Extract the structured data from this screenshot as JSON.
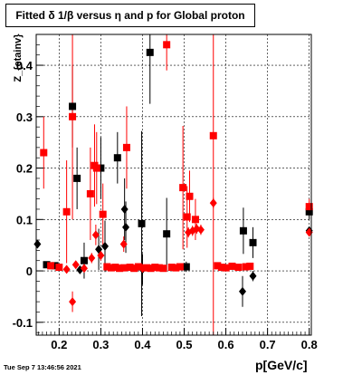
{
  "header": {
    "title": "Fitted δ 1/β versus η and p for Global proton"
  },
  "footer": {
    "timestamp": "Tue Sep  7 13:46:56 2021"
  },
  "chart_data": {
    "type": "scatter",
    "title": "Fitted δ 1/β versus η and p for Global proton",
    "xlabel": "p[GeV/c]",
    "ylabel": "Z_{etainv}",
    "xlim": [
      0.145,
      0.805
    ],
    "ylim": [
      -0.125,
      0.46
    ],
    "xticks": [
      0.2,
      0.3,
      0.4,
      0.5,
      0.6,
      0.7,
      0.8
    ],
    "yticks": [
      -0.1,
      0,
      0.1,
      0.2,
      0.3,
      0.4
    ],
    "grid": true,
    "series": [
      {
        "marker": "square",
        "color": "#000000",
        "points": [
          {
            "x": 0.17,
            "y": 0.012,
            "e": 0.004
          },
          {
            "x": 0.19,
            "y": 0.01,
            "e": 0.005
          },
          {
            "x": 0.232,
            "y": 0.32,
            "e": 0.08
          },
          {
            "x": 0.243,
            "y": 0.18,
            "e": 0.06
          },
          {
            "x": 0.26,
            "y": 0.02,
            "e": 0.035
          },
          {
            "x": 0.3,
            "y": 0.2,
            "e": 0.06
          },
          {
            "x": 0.34,
            "y": 0.22,
            "e": 0.05
          },
          {
            "x": 0.398,
            "y": 0.092,
            "e": 0.18
          },
          {
            "x": 0.418,
            "y": 0.425,
            "e": 0.1
          },
          {
            "x": 0.458,
            "y": 0.072,
            "e": 0.07
          },
          {
            "x": 0.505,
            "y": 0.008,
            "e": 0.01
          },
          {
            "x": 0.642,
            "y": 0.078,
            "e": 0.045
          },
          {
            "x": 0.665,
            "y": 0.055,
            "e": 0.03
          },
          {
            "x": 0.8,
            "y": 0.115,
            "e": 0.015
          }
        ]
      },
      {
        "marker": "diamond",
        "color": "#000000",
        "points": [
          {
            "x": 0.148,
            "y": 0.052,
            "e": 0.005
          },
          {
            "x": 0.25,
            "y": 0.002,
            "e": 0.005
          },
          {
            "x": 0.295,
            "y": 0.042,
            "e": 0.04
          },
          {
            "x": 0.31,
            "y": 0.048,
            "e": 0.05
          },
          {
            "x": 0.357,
            "y": 0.12,
            "e": 0.06
          },
          {
            "x": 0.36,
            "y": 0.085,
            "e": 0.05
          },
          {
            "x": 0.4,
            "y": 0.003,
            "e": 0.03
          },
          {
            "x": 0.64,
            "y": -0.04,
            "e": 0.03
          },
          {
            "x": 0.665,
            "y": -0.01,
            "e": 0.01
          },
          {
            "x": 0.8,
            "y": 0.078,
            "e": 0.008
          }
        ]
      },
      {
        "marker": "square",
        "color": "#ff0000",
        "points": [
          {
            "x": 0.163,
            "y": 0.23,
            "e": 0.07
          },
          {
            "x": 0.18,
            "y": 0.01,
            "e": 0.005
          },
          {
            "x": 0.2,
            "y": 0.007,
            "e": 0.005
          },
          {
            "x": 0.218,
            "y": 0.115,
            "e": 0.1
          },
          {
            "x": 0.232,
            "y": 0.3,
            "e": 0.2
          },
          {
            "x": 0.275,
            "y": 0.15,
            "e": 0.09
          },
          {
            "x": 0.285,
            "y": 0.205,
            "e": 0.08
          },
          {
            "x": 0.29,
            "y": 0.2,
            "e": 0.07
          },
          {
            "x": 0.305,
            "y": 0.11,
            "e": 0.06
          },
          {
            "x": 0.315,
            "y": 0.008,
            "e": 0.005
          },
          {
            "x": 0.325,
            "y": 0.006,
            "e": 0.005
          },
          {
            "x": 0.335,
            "y": 0.007,
            "e": 0.005
          },
          {
            "x": 0.345,
            "y": 0.005,
            "e": 0.005
          },
          {
            "x": 0.355,
            "y": 0.006,
            "e": 0.005
          },
          {
            "x": 0.362,
            "y": 0.24,
            "e": 0.08
          },
          {
            "x": 0.37,
            "y": 0.007,
            "e": 0.005
          },
          {
            "x": 0.38,
            "y": 0.005,
            "e": 0.005
          },
          {
            "x": 0.39,
            "y": 0.008,
            "e": 0.005
          },
          {
            "x": 0.41,
            "y": 0.006,
            "e": 0.005
          },
          {
            "x": 0.42,
            "y": 0.005,
            "e": 0.005
          },
          {
            "x": 0.43,
            "y": 0.007,
            "e": 0.005
          },
          {
            "x": 0.44,
            "y": 0.006,
            "e": 0.005
          },
          {
            "x": 0.45,
            "y": 0.005,
            "e": 0.005
          },
          {
            "x": 0.458,
            "y": 0.44,
            "e": 0.05
          },
          {
            "x": 0.47,
            "y": 0.007,
            "e": 0.005
          },
          {
            "x": 0.48,
            "y": 0.006,
            "e": 0.005
          },
          {
            "x": 0.49,
            "y": 0.008,
            "e": 0.005
          },
          {
            "x": 0.497,
            "y": 0.162,
            "e": 0.12
          },
          {
            "x": 0.507,
            "y": 0.105,
            "e": 0.06
          },
          {
            "x": 0.513,
            "y": 0.145,
            "e": 0.05
          },
          {
            "x": 0.527,
            "y": 0.1,
            "e": 0.04
          },
          {
            "x": 0.57,
            "y": 0.263,
            "e": 0.5
          },
          {
            "x": 0.58,
            "y": 0.01,
            "e": 0.005
          },
          {
            "x": 0.59,
            "y": 0.007,
            "e": 0.005
          },
          {
            "x": 0.6,
            "y": 0.006,
            "e": 0.005
          },
          {
            "x": 0.615,
            "y": 0.009,
            "e": 0.005
          },
          {
            "x": 0.63,
            "y": 0.007,
            "e": 0.005
          },
          {
            "x": 0.648,
            "y": 0.008,
            "e": 0.005
          },
          {
            "x": 0.658,
            "y": 0.009,
            "e": 0.005
          },
          {
            "x": 0.8,
            "y": 0.125,
            "e": 0.015
          }
        ]
      },
      {
        "marker": "diamond",
        "color": "#ff0000",
        "points": [
          {
            "x": 0.218,
            "y": 0.003,
            "e": 0.005
          },
          {
            "x": 0.232,
            "y": -0.06,
            "e": 0.02
          },
          {
            "x": 0.24,
            "y": 0.012,
            "e": 0.005
          },
          {
            "x": 0.26,
            "y": 0.005,
            "e": 0.005
          },
          {
            "x": 0.278,
            "y": 0.025,
            "e": 0.01
          },
          {
            "x": 0.288,
            "y": 0.07,
            "e": 0.02
          },
          {
            "x": 0.3,
            "y": 0.03,
            "e": 0.01
          },
          {
            "x": 0.355,
            "y": 0.052,
            "e": 0.015
          },
          {
            "x": 0.4,
            "y": 0.005,
            "e": 0.005
          },
          {
            "x": 0.51,
            "y": 0.075,
            "e": 0.01
          },
          {
            "x": 0.52,
            "y": 0.078,
            "e": 0.01
          },
          {
            "x": 0.53,
            "y": 0.082,
            "e": 0.01
          },
          {
            "x": 0.54,
            "y": 0.08,
            "e": 0.01
          },
          {
            "x": 0.57,
            "y": 0.132,
            "e": 0.01
          },
          {
            "x": 0.8,
            "y": 0.075,
            "e": 0.005
          }
        ]
      }
    ]
  }
}
